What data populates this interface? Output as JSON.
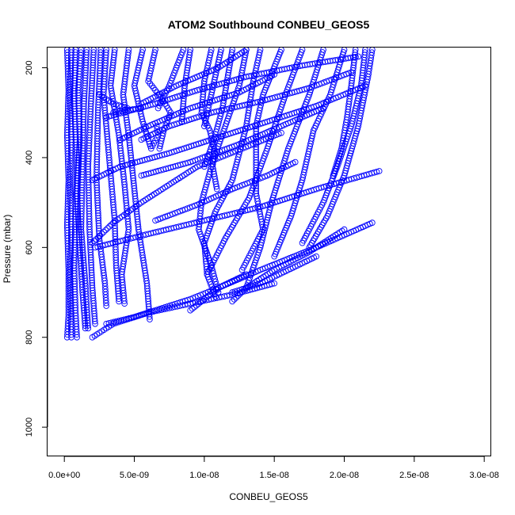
{
  "chart_data": {
    "type": "scatter",
    "title": "ATOM2 Southbound CONBEU_GEOS5",
    "xlabel": "CONBEU_GEOS5",
    "ylabel": "Pressure (mbar)",
    "x_ticks": [
      {
        "value": 0.0,
        "label": "0.0e+00"
      },
      {
        "value": 5e-09,
        "label": "5.0e-09"
      },
      {
        "value": 1e-08,
        "label": "1.0e-08"
      },
      {
        "value": 1.5e-08,
        "label": "1.5e-08"
      },
      {
        "value": 2e-08,
        "label": "2.0e-08"
      },
      {
        "value": 2.5e-08,
        "label": "2.5e-08"
      },
      {
        "value": 3e-08,
        "label": "3.0e-08"
      }
    ],
    "y_ticks": [
      {
        "value": 200,
        "label": "200"
      },
      {
        "value": 400,
        "label": "400"
      },
      {
        "value": 600,
        "label": "600"
      },
      {
        "value": 800,
        "label": "800"
      },
      {
        "value": 1000,
        "label": "1000"
      }
    ],
    "xlim": [
      -1.2e-09,
      3.05e-08
    ],
    "ylim": [
      1065,
      155
    ],
    "y_reversed": true,
    "grid": false,
    "marker": "open-circle",
    "color": "#0000ff",
    "series": [
      {
        "x": [
          2e-10,
          3e-10,
          2e-10,
          3e-10,
          2e-10,
          3e-10,
          3e-10,
          2e-10
        ],
        "y": [
          160,
          250,
          350,
          450,
          550,
          650,
          750,
          800
        ]
      },
      {
        "x": [
          5e-10,
          4e-10,
          5e-10,
          4e-10,
          5e-10,
          4e-10,
          5e-10
        ],
        "y": [
          160,
          260,
          360,
          460,
          560,
          660,
          800
        ]
      },
      {
        "x": [
          8e-10,
          7e-10,
          9e-10,
          8e-10,
          7e-10,
          8e-10,
          9e-10
        ],
        "y": [
          160,
          280,
          400,
          520,
          640,
          740,
          800
        ]
      },
      {
        "x": [
          1.2e-09,
          1e-09,
          1.1e-09,
          9e-10,
          1.1e-09,
          1.3e-09,
          1.5e-09
        ],
        "y": [
          160,
          250,
          360,
          480,
          600,
          700,
          780
        ]
      },
      {
        "x": [
          1.6e-09,
          1.4e-09,
          1.3e-09,
          1.2e-09,
          1.5e-09,
          1.7e-09
        ],
        "y": [
          160,
          280,
          420,
          560,
          680,
          780
        ]
      },
      {
        "x": [
          2.1e-09,
          1.9e-09,
          1.7e-09,
          1.8e-09,
          2e-09,
          2.2e-09
        ],
        "y": [
          160,
          280,
          420,
          560,
          690,
          770
        ]
      },
      {
        "x": [
          2.6e-09,
          2.4e-09,
          2.3e-09,
          2.5e-09,
          2.9e-09,
          3e-09
        ],
        "y": [
          160,
          300,
          450,
          580,
          680,
          730
        ]
      },
      {
        "x": [
          3e-09,
          2.8e-09,
          3.2e-09,
          3.6e-09,
          3.7e-09,
          3.9e-09
        ],
        "y": [
          160,
          260,
          400,
          540,
          640,
          720
        ]
      },
      {
        "x": [
          3.6e-09,
          3.3e-09,
          3.9e-09,
          4.3e-09,
          4.6e-09,
          4.1e-09,
          4.3e-09
        ],
        "y": [
          160,
          240,
          350,
          460,
          560,
          660,
          725
        ]
      },
      {
        "x": [
          4.6e-09,
          4.2e-09,
          4.6e-09,
          4.9e-09,
          5.3e-09,
          5.9e-09,
          6.1e-09
        ],
        "y": [
          160,
          260,
          350,
          440,
          560,
          680,
          760
        ]
      },
      {
        "x": [
          5.6e-09,
          5e-09,
          5.6e-09,
          6.2e-09,
          6.7e-09,
          6.6e-09
        ],
        "y": [
          160,
          240,
          320,
          380,
          350,
          330
        ]
      },
      {
        "x": [
          6.5e-09,
          6e-09,
          7e-09,
          7.6e-09,
          7.1e-09,
          6.8e-09
        ],
        "y": [
          160,
          230,
          270,
          300,
          340,
          380
        ]
      },
      {
        "x": [
          8.5e-09,
          8e-09,
          7.5e-09,
          6.7e-09
        ],
        "y": [
          160,
          200,
          240,
          290
        ]
      },
      {
        "x": [
          1.05e-08,
          1e-08,
          9.8e-09,
          1.04e-08,
          1.07e-08,
          1.06e-08,
          1.09e-08
        ],
        "y": [
          160,
          230,
          300,
          340,
          380,
          420,
          470
        ]
      },
      {
        "x": [
          1.3e-08,
          1.25e-08,
          1.15e-08,
          1.05e-08,
          9.8e-09,
          9.6e-09,
          1.05e-08,
          1.1e-08
        ],
        "y": [
          160,
          240,
          330,
          420,
          500,
          560,
          640,
          700
        ]
      },
      {
        "x": [
          1.4e-08,
          1.35e-08,
          1.3e-08,
          1.2e-08,
          1.08e-08,
          1e-08,
          1.02e-08,
          1.08e-08
        ],
        "y": [
          160,
          230,
          330,
          450,
          520,
          590,
          660,
          710
        ]
      },
      {
        "x": [
          1.55e-08,
          1.42e-08,
          1.37e-08,
          1.37e-08,
          1.42e-08,
          1.27e-08
        ],
        "y": [
          160,
          260,
          330,
          480,
          560,
          650
        ]
      },
      {
        "x": [
          1.7e-08,
          1.58e-08,
          1.45e-08,
          1.32e-08,
          1.15e-08,
          1.02e-08
        ],
        "y": [
          160,
          260,
          380,
          490,
          580,
          660
        ]
      },
      {
        "x": [
          1.85e-08,
          1.75e-08,
          1.6e-08,
          1.48e-08,
          1.4e-08,
          1.3e-08
        ],
        "y": [
          160,
          260,
          380,
          500,
          600,
          690
        ]
      },
      {
        "x": [
          2e-08,
          1.9e-08,
          1.78e-08,
          1.7e-08,
          1.62e-08,
          1.5e-08
        ],
        "y": [
          160,
          260,
          340,
          450,
          530,
          620
        ]
      },
      {
        "x": [
          2.15e-08,
          2.12e-08,
          2.05e-08,
          1.95e-08,
          1.85e-08,
          1.7e-08
        ],
        "y": [
          160,
          240,
          330,
          420,
          500,
          590
        ]
      },
      {
        "x": [
          2.2e-08,
          2.17e-08,
          2.1e-08,
          2e-08,
          1.88e-08,
          1.75e-08
        ],
        "y": [
          160,
          220,
          330,
          440,
          530,
          600
        ]
      },
      {
        "x": [
          2.08e-08,
          2.05e-08,
          2.02e-08,
          1.98e-08,
          1.92e-08
        ],
        "y": [
          160,
          240,
          310,
          380,
          440
        ]
      },
      {
        "x": [
          1.2e-08,
          1.13e-08,
          1.07e-08,
          1e-08
        ],
        "y": [
          160,
          290,
          360,
          420
        ]
      },
      {
        "x": [
          1.12e-08,
          1.05e-08,
          1e-08
        ],
        "y": [
          160,
          260,
          330
        ]
      },
      {
        "x": [
          9e-09,
          8.6e-09,
          8.4e-09
        ],
        "y": [
          160,
          240,
          320
        ]
      },
      {
        "x": [
          1.55e-08,
          1.35e-08,
          1.15e-08,
          9.5e-09,
          7.5e-09,
          5.5e-09,
          3.5e-09,
          2e-09
        ],
        "y": [
          345,
          370,
          395,
          420,
          460,
          500,
          545,
          590
        ]
      },
      {
        "x": [
          2.25e-08,
          1.8e-08,
          1.4e-08,
          1e-08,
          6e-09,
          2.2e-09
        ],
        "y": [
          430,
          470,
          510,
          540,
          570,
          600
        ]
      },
      {
        "x": [
          2.05e-08,
          1.75e-08,
          1.4e-08,
          1.05e-08,
          7.5e-09,
          5.5e-09
        ],
        "y": [
          210,
          245,
          275,
          300,
          330,
          360
        ]
      },
      {
        "x": [
          1.5e-08,
          1.25e-08,
          9e-09,
          6e-09,
          4e-09
        ],
        "y": [
          215,
          255,
          290,
          330,
          360
        ]
      },
      {
        "x": [
          1.3e-08,
          1.1e-08,
          8e-09,
          5.5e-09
        ],
        "y": [
          160,
          200,
          240,
          280
        ]
      },
      {
        "x": [
          2.1e-08,
          1.7e-08,
          1.3e-08,
          9.5e-09,
          6.5e-09,
          3e-09
        ],
        "y": [
          175,
          195,
          220,
          250,
          280,
          310
        ]
      },
      {
        "x": [
          2.15e-08,
          1.8e-08,
          1.45e-08,
          1.1e-08,
          7.5e-09,
          4e-09,
          2e-09
        ],
        "y": [
          240,
          285,
          320,
          355,
          390,
          420,
          450
        ]
      },
      {
        "x": [
          1.85e-08,
          1.55e-08,
          1.25e-08,
          9e-09,
          5.5e-09
        ],
        "y": [
          290,
          330,
          370,
          410,
          440
        ]
      },
      {
        "x": [
          1.65e-08,
          1.45e-08,
          1.2e-08,
          9.5e-09,
          6.5e-09
        ],
        "y": [
          410,
          440,
          470,
          505,
          540
        ]
      },
      {
        "x": [
          1.3e-08,
          1.1e-08,
          9e-09,
          7e-09,
          5e-09,
          3e-09
        ],
        "y": [
          660,
          690,
          715,
          735,
          755,
          770
        ]
      },
      {
        "x": [
          1.5e-08,
          1.2e-08,
          9e-09,
          6e-09,
          3.5e-09,
          2e-09
        ],
        "y": [
          680,
          705,
          725,
          745,
          770,
          800
        ]
      },
      {
        "x": [
          2.2e-08,
          1.8e-08,
          1.4e-08,
          1.1e-08,
          9e-09
        ],
        "y": [
          545,
          600,
          650,
          690,
          740
        ]
      },
      {
        "x": [
          2e-08,
          1.75e-08,
          1.5e-08,
          1.3e-08,
          1.2e-08
        ],
        "y": [
          560,
          610,
          650,
          690,
          720
        ]
      },
      {
        "x": [
          1.8e-08,
          1.6e-08,
          1.4e-08,
          1.2e-08
        ],
        "y": [
          620,
          650,
          680,
          700
        ]
      },
      {
        "x": [
          2.5e-09,
          3.5e-09,
          4.5e-09
        ],
        "y": [
          260,
          280,
          290
        ]
      },
      {
        "x": [
          3.5e-09,
          4.3e-09,
          5.5e-09
        ],
        "y": [
          300,
          295,
          290
        ]
      }
    ]
  }
}
